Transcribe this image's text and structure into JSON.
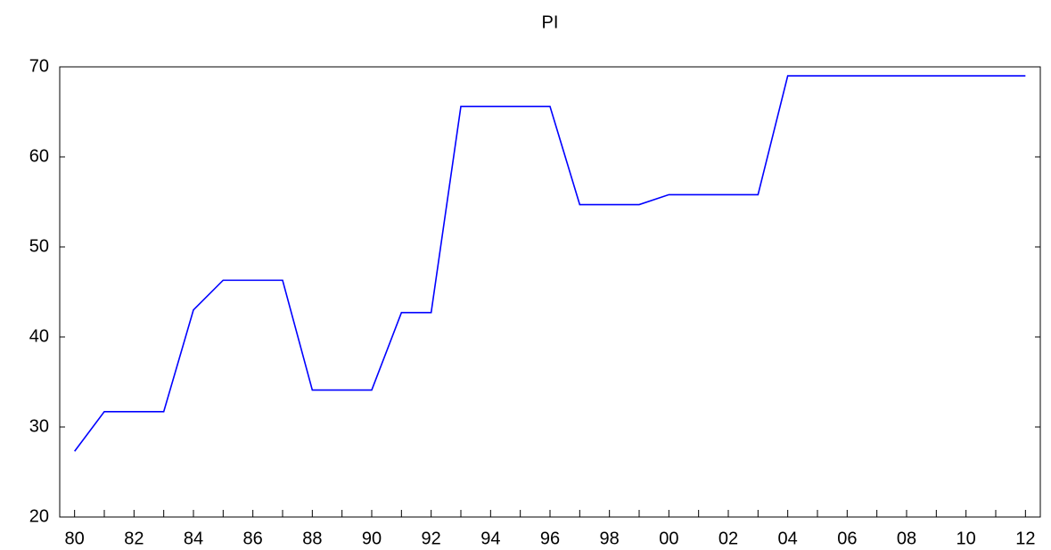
{
  "chart_data": {
    "type": "line",
    "title": "PI",
    "categories": [
      "80",
      null,
      "82",
      null,
      "84",
      null,
      "86",
      null,
      "88",
      null,
      "90",
      null,
      "92",
      null,
      "94",
      null,
      "96",
      null,
      "98",
      null,
      "00",
      null,
      "02",
      null,
      "04",
      null,
      "06",
      null,
      "08",
      null,
      "10",
      null,
      "12"
    ],
    "series": [
      {
        "color": "#0000ff",
        "values": [
          27.3,
          31.7,
          31.7,
          31.7,
          43.0,
          46.3,
          46.3,
          46.3,
          34.1,
          34.1,
          34.1,
          42.7,
          42.7,
          65.6,
          65.6,
          65.6,
          65.6,
          54.7,
          54.7,
          54.7,
          55.8,
          55.8,
          55.8,
          55.8,
          69.0,
          69.0,
          69.0,
          69.0,
          69.0,
          69.0,
          69.0,
          69.0,
          69.0
        ]
      }
    ],
    "ylim": [
      20,
      70
    ],
    "yticks": [
      20,
      30,
      40,
      50,
      60,
      70
    ],
    "grid": false
  }
}
